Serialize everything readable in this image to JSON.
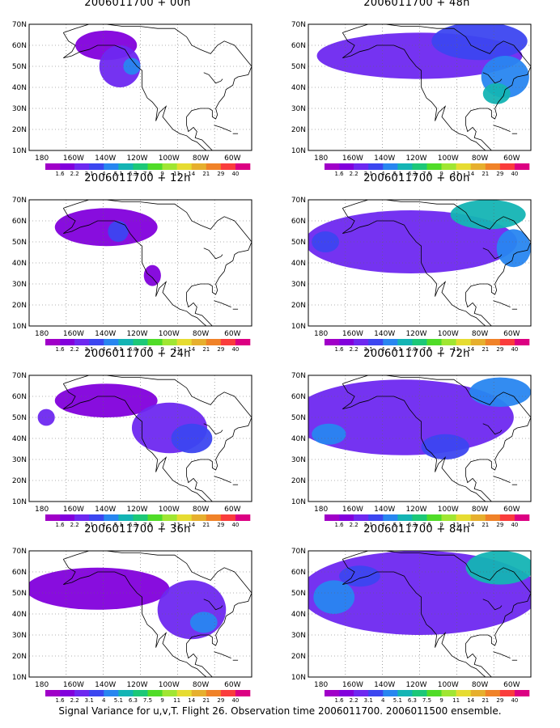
{
  "footer": "Signal Variance for u,v,T. Flight 26. Observation time 2006011700. 2006011500 ensemble.",
  "colorbar": {
    "labels": [
      "1.6",
      "2.2",
      "3.1",
      "4",
      "5.1",
      "6.3",
      "7.5",
      "9",
      "11",
      "14",
      "21",
      "29",
      "40"
    ],
    "colors": [
      "#a000c8",
      "#8200dc",
      "#6e28f0",
      "#3c46f0",
      "#2886f0",
      "#14b4b4",
      "#1cc878",
      "#50dc28",
      "#a0e632",
      "#e6dc32",
      "#e6af2d",
      "#f08228",
      "#fa3c3c",
      "#dc0082"
    ]
  },
  "map": {
    "y_ticks": [
      "70N",
      "60N",
      "50N",
      "40N",
      "30N",
      "20N",
      "10N"
    ],
    "x_ticks": [
      "180",
      "160W",
      "140W",
      "120W",
      "100W",
      "80W",
      "60W"
    ]
  },
  "chart_data": [
    {
      "type": "heatmap",
      "title": "2006011700 + 00h",
      "lead_hours": 0,
      "xlim": [
        170,
        300
      ],
      "ylim": [
        10,
        70
      ],
      "x_ticks": [
        "180",
        "160W",
        "140W",
        "120W",
        "100W",
        "80W",
        "60W"
      ],
      "y_ticks": [
        "70N",
        "60N",
        "50N",
        "40N",
        "30N",
        "20N",
        "10N"
      ],
      "blobs": [
        {
          "lon": 215,
          "lat": 60,
          "rx": 18,
          "ry": 7,
          "level": 1
        },
        {
          "lon": 223,
          "lat": 50,
          "rx": 12,
          "ry": 10,
          "level": 2
        },
        {
          "lon": 230,
          "lat": 50,
          "rx": 5,
          "ry": 4,
          "level": 4
        }
      ]
    },
    {
      "type": "heatmap",
      "title": "2006011700 + 48h",
      "lead_hours": 48,
      "xlim": [
        170,
        300
      ],
      "ylim": [
        10,
        70
      ],
      "x_ticks": [
        "180",
        "160W",
        "140W",
        "120W",
        "100W",
        "80W",
        "60W"
      ],
      "y_ticks": [
        "70N",
        "60N",
        "50N",
        "40N",
        "30N",
        "20N",
        "10N"
      ],
      "blobs": [
        {
          "lon": 235,
          "lat": 55,
          "rx": 60,
          "ry": 11,
          "level": 2
        },
        {
          "lon": 270,
          "lat": 62,
          "rx": 28,
          "ry": 9,
          "level": 3
        },
        {
          "lon": 285,
          "lat": 45,
          "rx": 14,
          "ry": 10,
          "level": 4
        },
        {
          "lon": 280,
          "lat": 37,
          "rx": 8,
          "ry": 5,
          "level": 5
        }
      ]
    },
    {
      "type": "heatmap",
      "title": "2006011700 + 12h",
      "lead_hours": 12,
      "xlim": [
        170,
        300
      ],
      "ylim": [
        10,
        70
      ],
      "x_ticks": [
        "180",
        "160W",
        "140W",
        "120W",
        "100W",
        "80W",
        "60W"
      ],
      "y_ticks": [
        "70N",
        "60N",
        "50N",
        "40N",
        "30N",
        "20N",
        "10N"
      ],
      "blobs": [
        {
          "lon": 215,
          "lat": 57,
          "rx": 30,
          "ry": 9,
          "level": 1
        },
        {
          "lon": 222,
          "lat": 55,
          "rx": 6,
          "ry": 5,
          "level": 3
        },
        {
          "lon": 242,
          "lat": 34,
          "rx": 5,
          "ry": 5,
          "level": 1
        }
      ]
    },
    {
      "type": "heatmap",
      "title": "2006011700 + 60h",
      "lead_hours": 60,
      "xlim": [
        170,
        300
      ],
      "ylim": [
        10,
        70
      ],
      "x_ticks": [
        "180",
        "160W",
        "140W",
        "120W",
        "100W",
        "80W",
        "60W"
      ],
      "y_ticks": [
        "70N",
        "60N",
        "50N",
        "40N",
        "30N",
        "20N",
        "10N"
      ],
      "blobs": [
        {
          "lon": 230,
          "lat": 50,
          "rx": 62,
          "ry": 15,
          "level": 2
        },
        {
          "lon": 275,
          "lat": 63,
          "rx": 22,
          "ry": 7,
          "level": 5
        },
        {
          "lon": 290,
          "lat": 47,
          "rx": 10,
          "ry": 9,
          "level": 4
        },
        {
          "lon": 180,
          "lat": 50,
          "rx": 8,
          "ry": 5,
          "level": 3
        }
      ]
    },
    {
      "type": "heatmap",
      "title": "2006011700 + 24h",
      "lead_hours": 24,
      "xlim": [
        170,
        300
      ],
      "ylim": [
        10,
        70
      ],
      "x_ticks": [
        "180",
        "160W",
        "140W",
        "120W",
        "100W",
        "80W",
        "60W"
      ],
      "y_ticks": [
        "70N",
        "60N",
        "50N",
        "40N",
        "30N",
        "20N",
        "10N"
      ],
      "blobs": [
        {
          "lon": 180,
          "lat": 50,
          "rx": 5,
          "ry": 4,
          "level": 2
        },
        {
          "lon": 215,
          "lat": 58,
          "rx": 30,
          "ry": 8,
          "level": 1
        },
        {
          "lon": 252,
          "lat": 45,
          "rx": 22,
          "ry": 12,
          "level": 2
        },
        {
          "lon": 265,
          "lat": 40,
          "rx": 12,
          "ry": 7,
          "level": 3
        }
      ]
    },
    {
      "type": "heatmap",
      "title": "2006011700 + 72h",
      "lead_hours": 72,
      "xlim": [
        170,
        300
      ],
      "ylim": [
        10,
        70
      ],
      "x_ticks": [
        "180",
        "160W",
        "140W",
        "120W",
        "100W",
        "80W",
        "60W"
      ],
      "y_ticks": [
        "70N",
        "60N",
        "50N",
        "40N",
        "30N",
        "20N",
        "10N"
      ],
      "blobs": [
        {
          "lon": 225,
          "lat": 50,
          "rx": 65,
          "ry": 18,
          "level": 2
        },
        {
          "lon": 182,
          "lat": 42,
          "rx": 10,
          "ry": 5,
          "level": 4
        },
        {
          "lon": 282,
          "lat": 62,
          "rx": 18,
          "ry": 7,
          "level": 4
        },
        {
          "lon": 250,
          "lat": 36,
          "rx": 14,
          "ry": 6,
          "level": 3
        }
      ]
    },
    {
      "type": "heatmap",
      "title": "2006011700 + 36h",
      "lead_hours": 36,
      "xlim": [
        170,
        300
      ],
      "ylim": [
        10,
        70
      ],
      "x_ticks": [
        "180",
        "160W",
        "140W",
        "120W",
        "100W",
        "80W",
        "60W"
      ],
      "y_ticks": [
        "70N",
        "60N",
        "50N",
        "40N",
        "30N",
        "20N",
        "10N"
      ],
      "blobs": [
        {
          "lon": 210,
          "lat": 52,
          "rx": 42,
          "ry": 10,
          "level": 1
        },
        {
          "lon": 265,
          "lat": 42,
          "rx": 20,
          "ry": 14,
          "level": 2
        },
        {
          "lon": 272,
          "lat": 36,
          "rx": 8,
          "ry": 5,
          "level": 4
        }
      ]
    },
    {
      "type": "heatmap",
      "title": "2006011700 + 84h",
      "lead_hours": 84,
      "xlim": [
        170,
        300
      ],
      "ylim": [
        10,
        70
      ],
      "x_ticks": [
        "180",
        "160W",
        "140W",
        "120W",
        "100W",
        "80W",
        "60W"
      ],
      "y_ticks": [
        "70N",
        "60N",
        "50N",
        "40N",
        "30N",
        "20N",
        "10N"
      ],
      "blobs": [
        {
          "lon": 235,
          "lat": 50,
          "rx": 70,
          "ry": 20,
          "level": 2
        },
        {
          "lon": 185,
          "lat": 48,
          "rx": 12,
          "ry": 8,
          "level": 4
        },
        {
          "lon": 282,
          "lat": 62,
          "rx": 20,
          "ry": 8,
          "level": 5
        },
        {
          "lon": 200,
          "lat": 58,
          "rx": 12,
          "ry": 5,
          "level": 3
        }
      ]
    }
  ]
}
